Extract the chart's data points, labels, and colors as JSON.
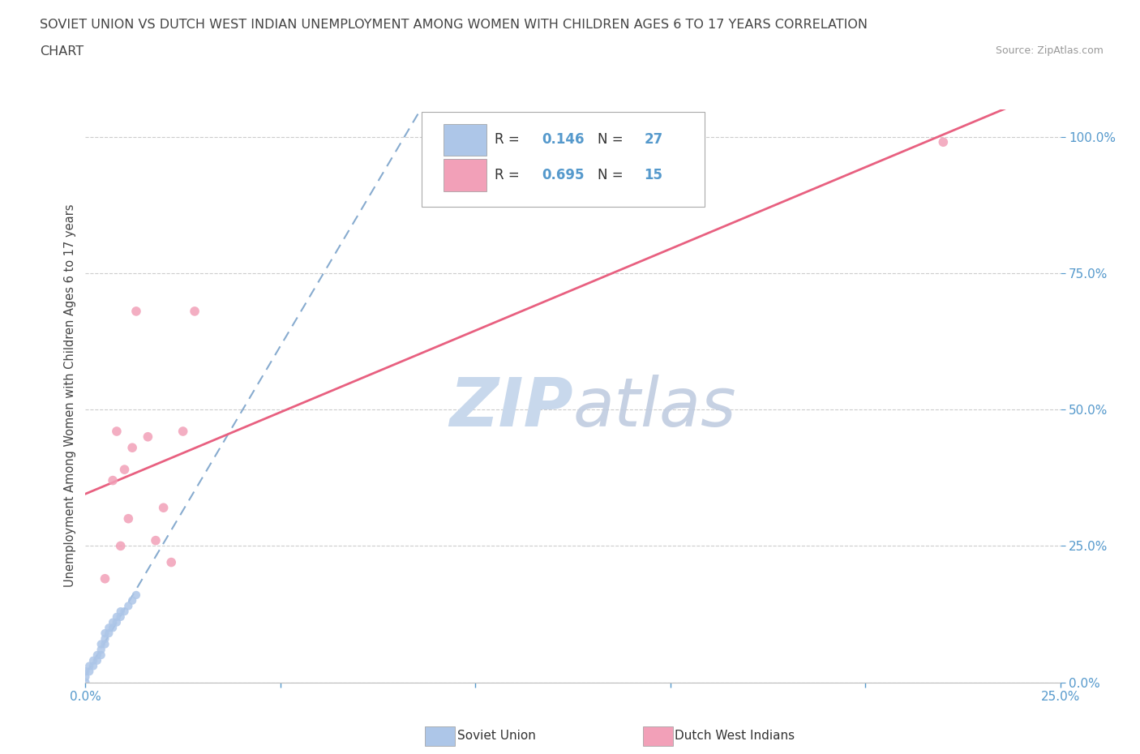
{
  "title_line1": "SOVIET UNION VS DUTCH WEST INDIAN UNEMPLOYMENT AMONG WOMEN WITH CHILDREN AGES 6 TO 17 YEARS CORRELATION",
  "title_line2": "CHART",
  "source_text": "Source: ZipAtlas.com",
  "ylabel": "Unemployment Among Women with Children Ages 6 to 17 years",
  "xlim": [
    0.0,
    0.25
  ],
  "ylim": [
    0.0,
    1.05
  ],
  "xticks": [
    0.0,
    0.05,
    0.1,
    0.15,
    0.2,
    0.25
  ],
  "xticklabels": [
    "0.0%",
    "",
    "",
    "",
    "",
    "25.0%"
  ],
  "yticks_right": [
    0.0,
    0.25,
    0.5,
    0.75,
    1.0
  ],
  "yticklabels_right": [
    "0.0%",
    "25.0%",
    "50.0%",
    "75.0%",
    "100.0%"
  ],
  "soviet_union_x": [
    0.0,
    0.0,
    0.0,
    0.001,
    0.001,
    0.002,
    0.002,
    0.003,
    0.003,
    0.004,
    0.004,
    0.004,
    0.005,
    0.005,
    0.005,
    0.006,
    0.006,
    0.007,
    0.007,
    0.008,
    0.008,
    0.009,
    0.009,
    0.01,
    0.011,
    0.012,
    0.013
  ],
  "soviet_union_y": [
    0.0,
    0.01,
    0.02,
    0.02,
    0.03,
    0.03,
    0.04,
    0.04,
    0.05,
    0.05,
    0.06,
    0.07,
    0.07,
    0.08,
    0.09,
    0.09,
    0.1,
    0.1,
    0.11,
    0.11,
    0.12,
    0.12,
    0.13,
    0.13,
    0.14,
    0.15,
    0.16
  ],
  "dutch_x": [
    0.005,
    0.007,
    0.008,
    0.009,
    0.01,
    0.011,
    0.012,
    0.013,
    0.016,
    0.018,
    0.02,
    0.022,
    0.025,
    0.028,
    0.22
  ],
  "dutch_y": [
    0.19,
    0.37,
    0.46,
    0.25,
    0.39,
    0.3,
    0.43,
    0.68,
    0.45,
    0.26,
    0.32,
    0.22,
    0.46,
    0.68,
    0.99
  ],
  "soviet_R": 0.146,
  "soviet_N": 27,
  "dutch_R": 0.695,
  "dutch_N": 15,
  "soviet_color": "#adc6e8",
  "dutch_color": "#f2a0b8",
  "soviet_line_color": "#5588bb",
  "dutch_line_color": "#e86080",
  "grid_color": "#cccccc",
  "title_color": "#444444",
  "axis_label_color": "#444444",
  "tick_color": "#5599cc",
  "legend_box_color_soviet": "#adc6e8",
  "legend_box_color_dutch": "#f2a0b8",
  "watermark_zip_color": "#c8d8ec",
  "watermark_atlas_color": "#c0cce0",
  "bg_color": "#ffffff"
}
